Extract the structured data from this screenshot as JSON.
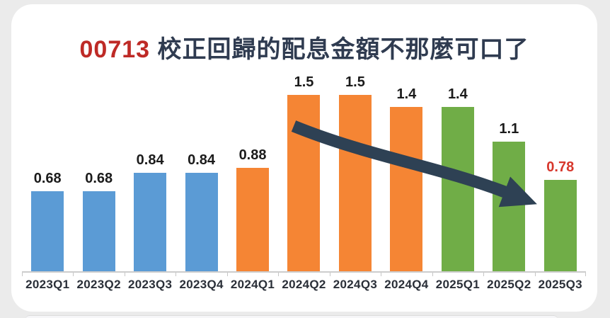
{
  "title": {
    "code": "00713",
    "text": "校正回歸的配息金額不那麼可口了",
    "code_color": "#BE2A26",
    "text_color": "#2F3B50"
  },
  "chart_data": {
    "type": "bar",
    "categories": [
      "2023Q1",
      "2023Q2",
      "2023Q3",
      "2023Q4",
      "2024Q1",
      "2024Q2",
      "2024Q3",
      "2024Q4",
      "2025Q1",
      "2025Q2",
      "2025Q3"
    ],
    "values": [
      0.68,
      0.68,
      0.84,
      0.84,
      0.88,
      1.5,
      1.5,
      1.4,
      1.4,
      1.1,
      0.78
    ],
    "value_labels": [
      "0.68",
      "0.68",
      "0.84",
      "0.84",
      "0.88",
      "1.5",
      "1.5",
      "1.4",
      "1.4",
      "1.1",
      "0.78"
    ],
    "bar_colors": [
      "#5B9BD5",
      "#5B9BD5",
      "#5B9BD5",
      "#5B9BD5",
      "#F58534",
      "#F58534",
      "#F58534",
      "#F58534",
      "#70AD47",
      "#70AD47",
      "#70AD47"
    ],
    "value_label_colors": [
      "#1B1B1B",
      "#1B1B1B",
      "#1B1B1B",
      "#1B1B1B",
      "#1B1B1B",
      "#1B1B1B",
      "#1B1B1B",
      "#1B1B1B",
      "#1B1B1B",
      "#1B1B1B",
      "#D7372C"
    ],
    "year_groups": [
      {
        "name": "2023",
        "color": "#5B9BD5"
      },
      {
        "name": "2024",
        "color": "#F58534"
      },
      {
        "name": "2025",
        "color": "#70AD47"
      }
    ],
    "title": "00713 校正回歸的配息金額不那麼可口了",
    "xlabel": "",
    "ylabel": "",
    "ylim": [
      0,
      1.6
    ],
    "grid": false,
    "legend": "none",
    "highlight": {
      "category": "2025Q3",
      "value": 0.78,
      "label_color": "#D7372C"
    },
    "annotation": {
      "type": "arrow",
      "meaning": "downtrend",
      "color": "#2E4154",
      "from_category": "2024Q2",
      "to_category": "2025Q3"
    }
  },
  "colors": {
    "background": "#EBEBEB",
    "card": "#FFFFFF",
    "axis_line": "#CDCDCD"
  }
}
